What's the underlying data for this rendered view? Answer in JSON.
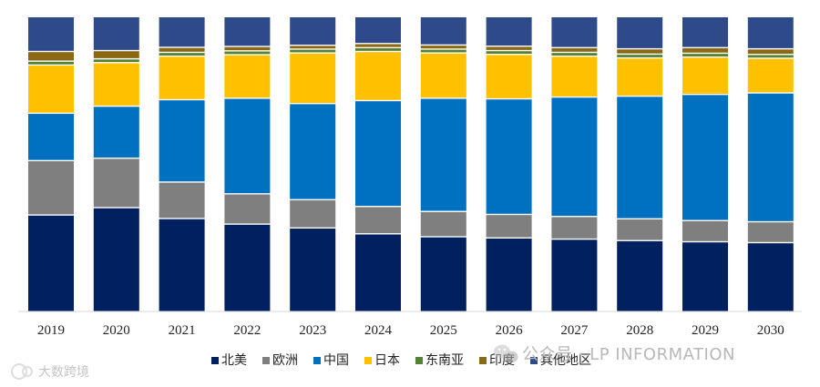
{
  "chart_data": {
    "type": "bar",
    "stacked": true,
    "normalized": true,
    "categories": [
      "2019",
      "2020",
      "2021",
      "2022",
      "2023",
      "2024",
      "2025",
      "2026",
      "2027",
      "2028",
      "2029",
      "2030"
    ],
    "ylim": [
      0,
      100
    ],
    "grid": false,
    "legend_position": "bottom",
    "series": [
      {
        "name": "北美",
        "color": "#002060",
        "values": [
          33.0,
          35.5,
          31.8,
          29.9,
          28.6,
          26.6,
          25.6,
          25.2,
          24.8,
          24.3,
          23.9,
          23.6
        ]
      },
      {
        "name": "欧洲",
        "color": "#7f7f7f",
        "values": [
          18.5,
          16.8,
          12.4,
          10.3,
          9.6,
          9.3,
          8.6,
          8.0,
          7.7,
          7.4,
          7.2,
          7.1
        ]
      },
      {
        "name": "中国",
        "color": "#0070c0",
        "values": [
          16.1,
          17.7,
          28.0,
          32.5,
          32.7,
          36.0,
          38.5,
          39.3,
          40.6,
          41.7,
          42.9,
          43.8
        ]
      },
      {
        "name": "日本",
        "color": "#ffc000",
        "values": [
          16.4,
          14.8,
          14.8,
          14.8,
          17.2,
          16.7,
          15.4,
          15.1,
          13.9,
          13.0,
          12.7,
          11.8
        ]
      },
      {
        "name": "东南亚",
        "color": "#548235",
        "values": [
          1.3,
          1.3,
          1.3,
          1.3,
          1.3,
          1.3,
          1.3,
          1.3,
          1.3,
          1.3,
          1.3,
          1.3
        ]
      },
      {
        "name": "印度",
        "color": "#8b6914",
        "values": [
          3.3,
          2.8,
          1.7,
          1.5,
          1.3,
          1.4,
          1.4,
          1.5,
          1.6,
          1.8,
          1.9,
          1.9
        ]
      },
      {
        "name": "其他地区",
        "color": "#2e4a8b",
        "values": [
          11.4,
          11.1,
          10.0,
          9.7,
          9.3,
          8.7,
          9.2,
          9.6,
          10.1,
          10.5,
          10.1,
          10.5
        ]
      }
    ]
  },
  "watermarks": {
    "wechat": "公众号 · LP INFORMATION",
    "brand": "大数跨境"
  }
}
